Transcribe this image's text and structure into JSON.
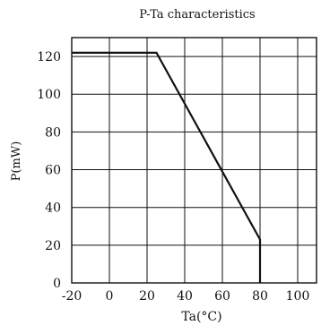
{
  "chart_data": {
    "type": "line",
    "title": "P-Ta characteristics",
    "xlabel": "Ta(°C)",
    "ylabel": "P(mW)",
    "xlim": [
      -20,
      110
    ],
    "ylim": [
      0,
      130
    ],
    "x_ticks": [
      -20,
      0,
      20,
      40,
      60,
      80,
      100
    ],
    "x_tick_labels": [
      "-20",
      "0",
      "20",
      "40",
      "60",
      "80",
      "100"
    ],
    "y_ticks": [
      0,
      20,
      40,
      60,
      80,
      100,
      120
    ],
    "y_tick_labels": [
      "0",
      "20",
      "40",
      "60",
      "80",
      "100",
      "120"
    ],
    "grid": true,
    "series": [
      {
        "x": [
          -20,
          25,
          80,
          80
        ],
        "y": [
          122,
          122,
          23,
          0
        ]
      }
    ],
    "colors": {
      "line": "#111111",
      "grid": "#111111",
      "background": "#ffffff"
    }
  }
}
